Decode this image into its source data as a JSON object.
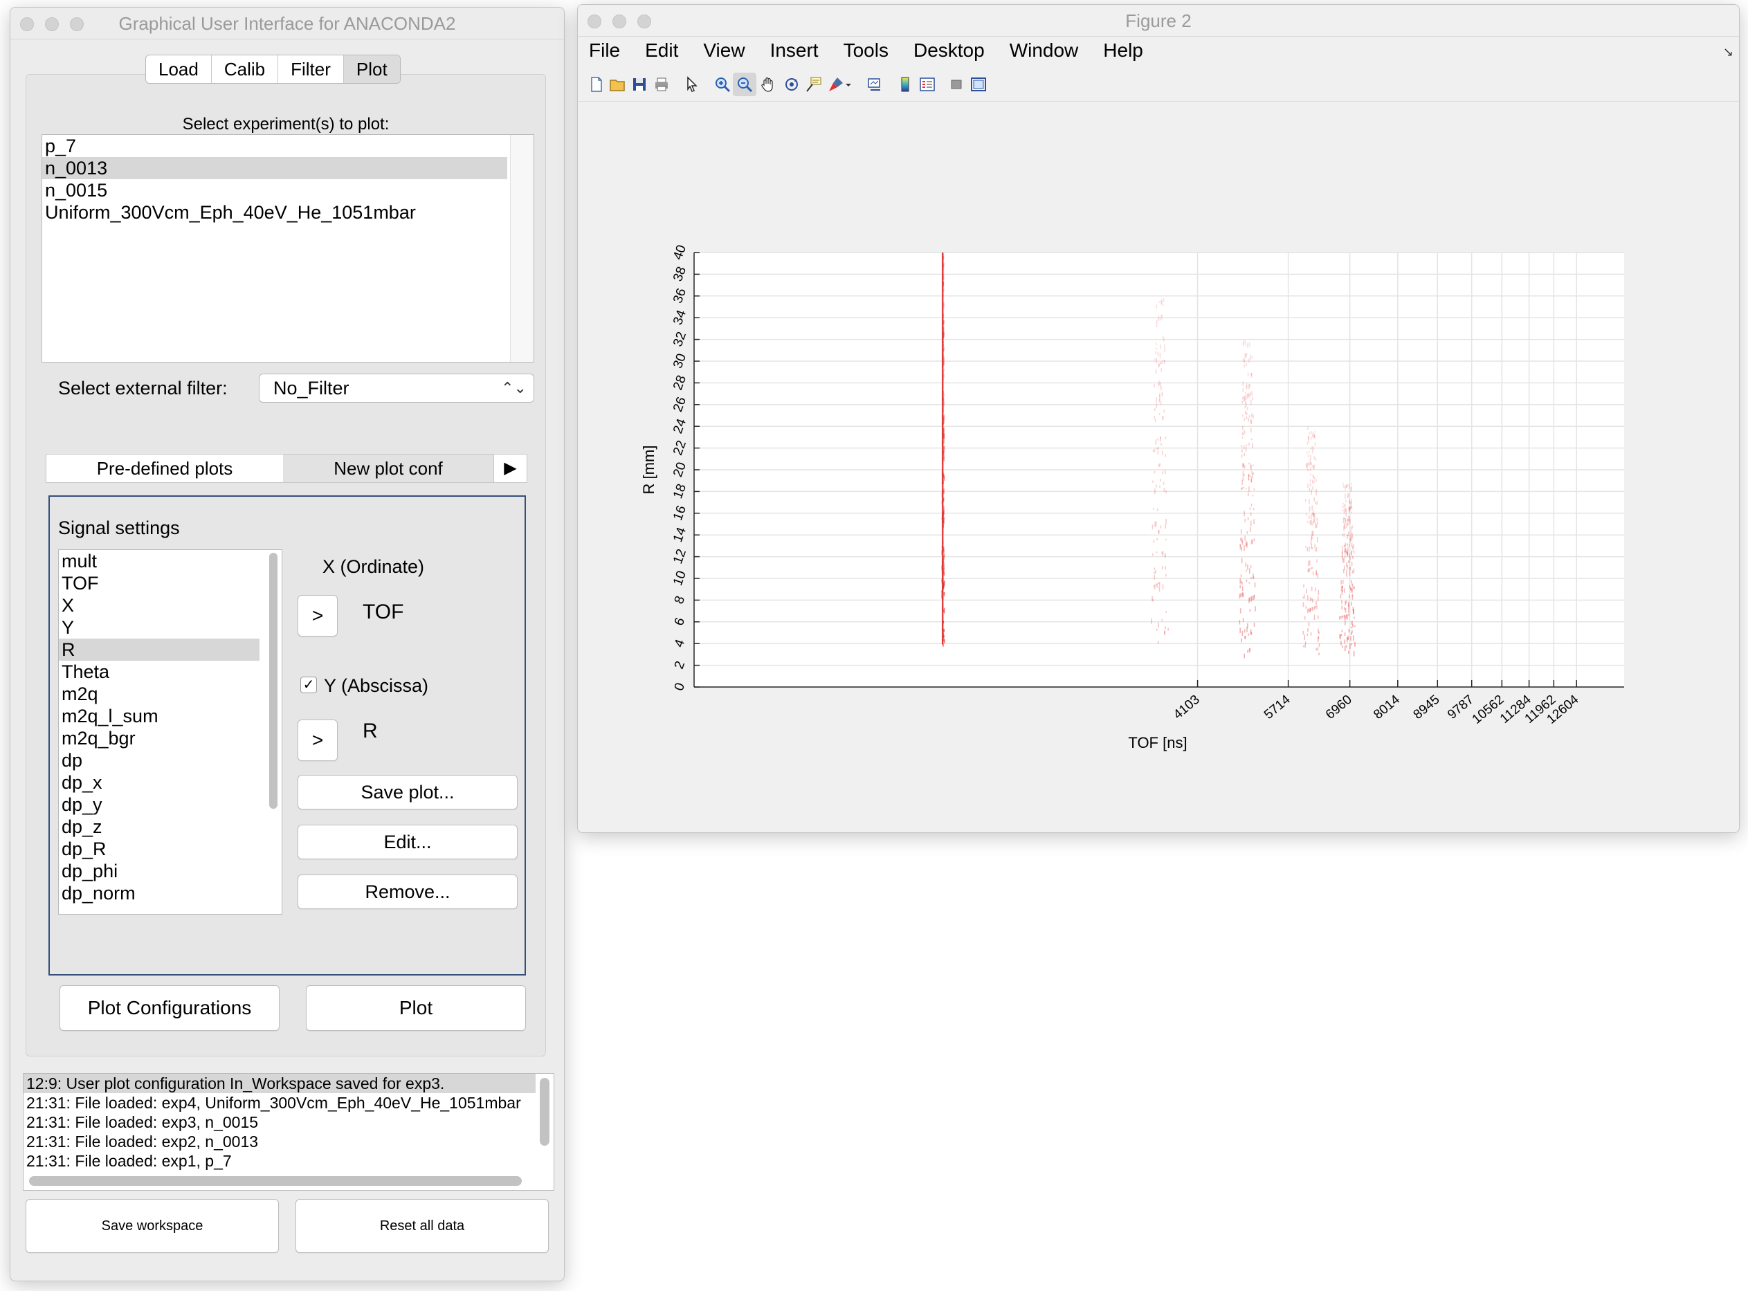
{
  "gui": {
    "title": "Graphical User Interface for ANACONDA2",
    "main_tabs": [
      {
        "label": "Load"
      },
      {
        "label": "Calib"
      },
      {
        "label": "Filter"
      },
      {
        "label": "Plot"
      }
    ],
    "select_experiment_label": "Select experiment(s) to plot:",
    "experiments": [
      "p_7",
      "n_0013",
      "n_0015",
      "Uniform_300Vcm_Eph_40eV_He_1051mbar"
    ],
    "selected_experiment": "n_0013",
    "external_filter_label": "Select external filter:",
    "external_filter_value": "No_Filter",
    "plot_tabs": {
      "predefined": "Pre-defined plots",
      "new_conf": "New plot conf",
      "arrow": "▶"
    },
    "signal_settings_label": "Signal settings",
    "signals": [
      "mult",
      "TOF",
      "X",
      "Y",
      "R",
      "Theta",
      "m2q",
      "m2q_l_sum",
      "m2q_bgr",
      "dp",
      "dp_x",
      "dp_y",
      "dp_z",
      "dp_R",
      "dp_phi",
      "dp_norm"
    ],
    "selected_signal": "R",
    "x_label": "X (Ordinate)",
    "x_button": ">",
    "x_value": "TOF",
    "y_checked": true,
    "y_check_mark": "✓",
    "y_label": "Y (Abscissa)",
    "y_button": ">",
    "y_value": "R",
    "save_plot_label": "Save plot...",
    "edit_label": "Edit...",
    "remove_label": "Remove...",
    "plot_configurations_label": "Plot Configurations",
    "plot_label": "Plot",
    "log": [
      "12:9: User plot configuration In_Workspace saved for exp3.",
      "21:31: File loaded: exp4, Uniform_300Vcm_Eph_40eV_He_1051mbar",
      "21:31: File loaded: exp3, n_0015",
      "21:31: File loaded: exp2, n_0013",
      "21:31: File loaded: exp1, p_7"
    ],
    "save_workspace_label": "Save workspace",
    "reset_all_label": "Reset all data"
  },
  "figure": {
    "title": "Figure 2",
    "menu": [
      "File",
      "Edit",
      "View",
      "Insert",
      "Tools",
      "Desktop",
      "Window",
      "Help"
    ],
    "toolbar_icons": [
      "new-figure-icon",
      "open-file-icon",
      "save-icon",
      "print-icon",
      "pointer-icon",
      "zoom-in-icon",
      "zoom-out-icon",
      "pan-icon",
      "rotate-3d-icon",
      "data-cursor-icon",
      "brush-icon",
      "link-plot-icon",
      "colorbar-icon",
      "legend-icon",
      "hide-plot-tools-icon",
      "show-plot-tools-icon"
    ],
    "colors": {
      "data": "#e03030",
      "grid": "#e4e4e4",
      "axes": "#262626"
    }
  },
  "chart_data": {
    "type": "heatmap",
    "title": "",
    "xlabel": "TOF [ns]",
    "ylabel": "R [mm]",
    "x_ticks": [
      4103,
      5714,
      6960,
      8014,
      8945,
      9787,
      10562,
      11284,
      11962,
      12604
    ],
    "xlim": [
      0,
      14000
    ],
    "y_ticks": [
      0,
      2,
      4,
      6,
      8,
      10,
      12,
      14,
      16,
      18,
      20,
      22,
      24,
      26,
      28,
      30,
      32,
      34,
      36,
      38,
      40
    ],
    "ylim": [
      0,
      40
    ],
    "grid": true,
    "x_scale": "square-root",
    "clusters": [
      {
        "tof": 1000,
        "r_min": 4,
        "r_max": 40,
        "intensity": 0.95
      },
      {
        "tof": 3500,
        "r_min": 4,
        "r_max": 36,
        "intensity": 0.25
      },
      {
        "tof": 4950,
        "r_min": 3,
        "r_max": 32,
        "intensity": 0.45
      },
      {
        "tof": 6150,
        "r_min": 3,
        "r_max": 24,
        "intensity": 0.35
      },
      {
        "tof": 6900,
        "r_min": 3,
        "r_max": 19,
        "intensity": 0.5
      }
    ]
  }
}
